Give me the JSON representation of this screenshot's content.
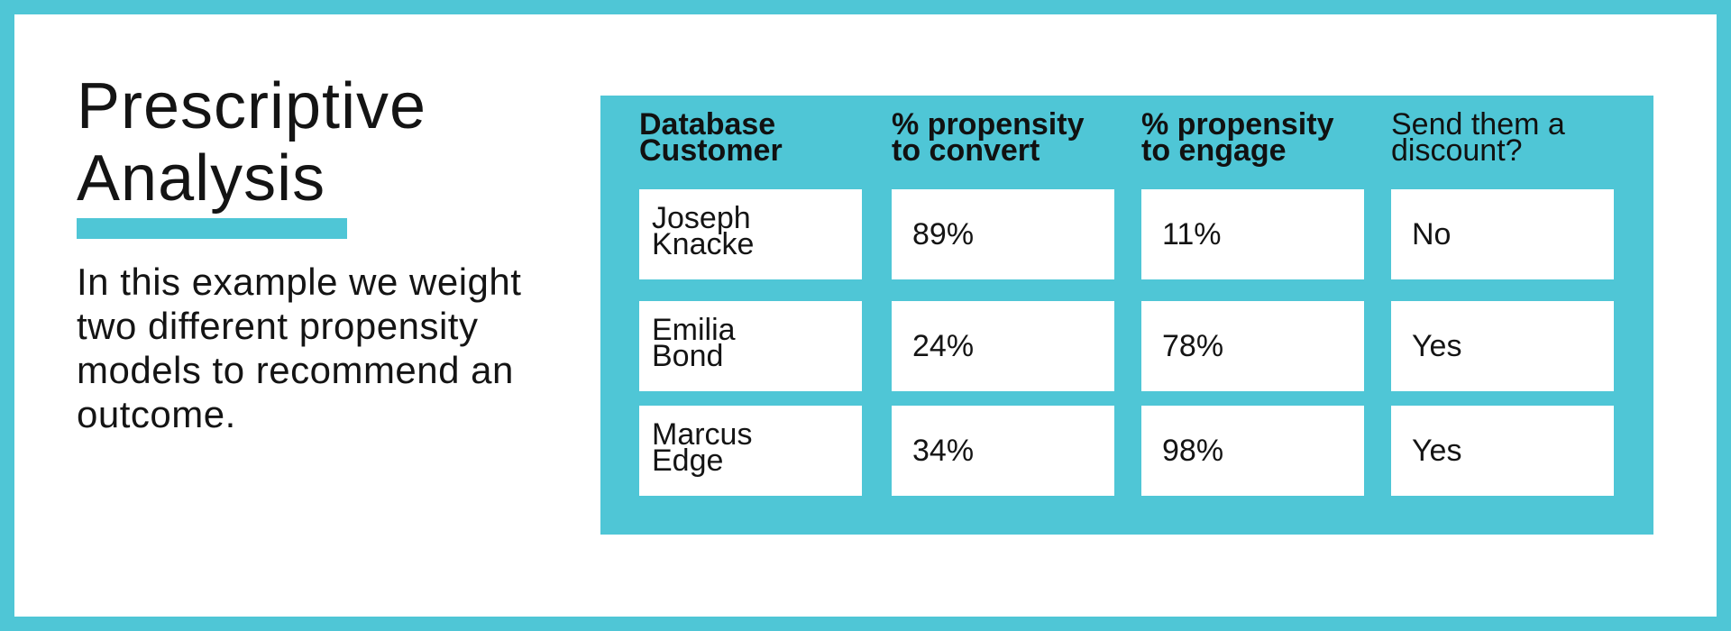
{
  "slide": {
    "title_line1": "Prescriptive",
    "title_line2": "Analysis",
    "description": "In this example we weight two different propensity models to recommend an outcome.",
    "accent_color": "#4fc6d6"
  },
  "table": {
    "headers": [
      {
        "line1": "Database",
        "line2": "Customer"
      },
      {
        "line1": "% propensity",
        "line2": "to convert"
      },
      {
        "line1": "% propensity",
        "line2": "to engage"
      },
      {
        "line1": "Send them a",
        "line2": "discount?"
      }
    ],
    "rows": [
      {
        "first_name": "Joseph",
        "last_name": "Knacke",
        "convert": "89%",
        "engage": "11%",
        "discount": "No"
      },
      {
        "first_name": "Emilia",
        "last_name": "Bond",
        "convert": "24%",
        "engage": "78%",
        "discount": "Yes"
      },
      {
        "first_name": "Marcus",
        "last_name": "Edge",
        "convert": "34%",
        "engage": "98%",
        "discount": "Yes"
      }
    ]
  }
}
